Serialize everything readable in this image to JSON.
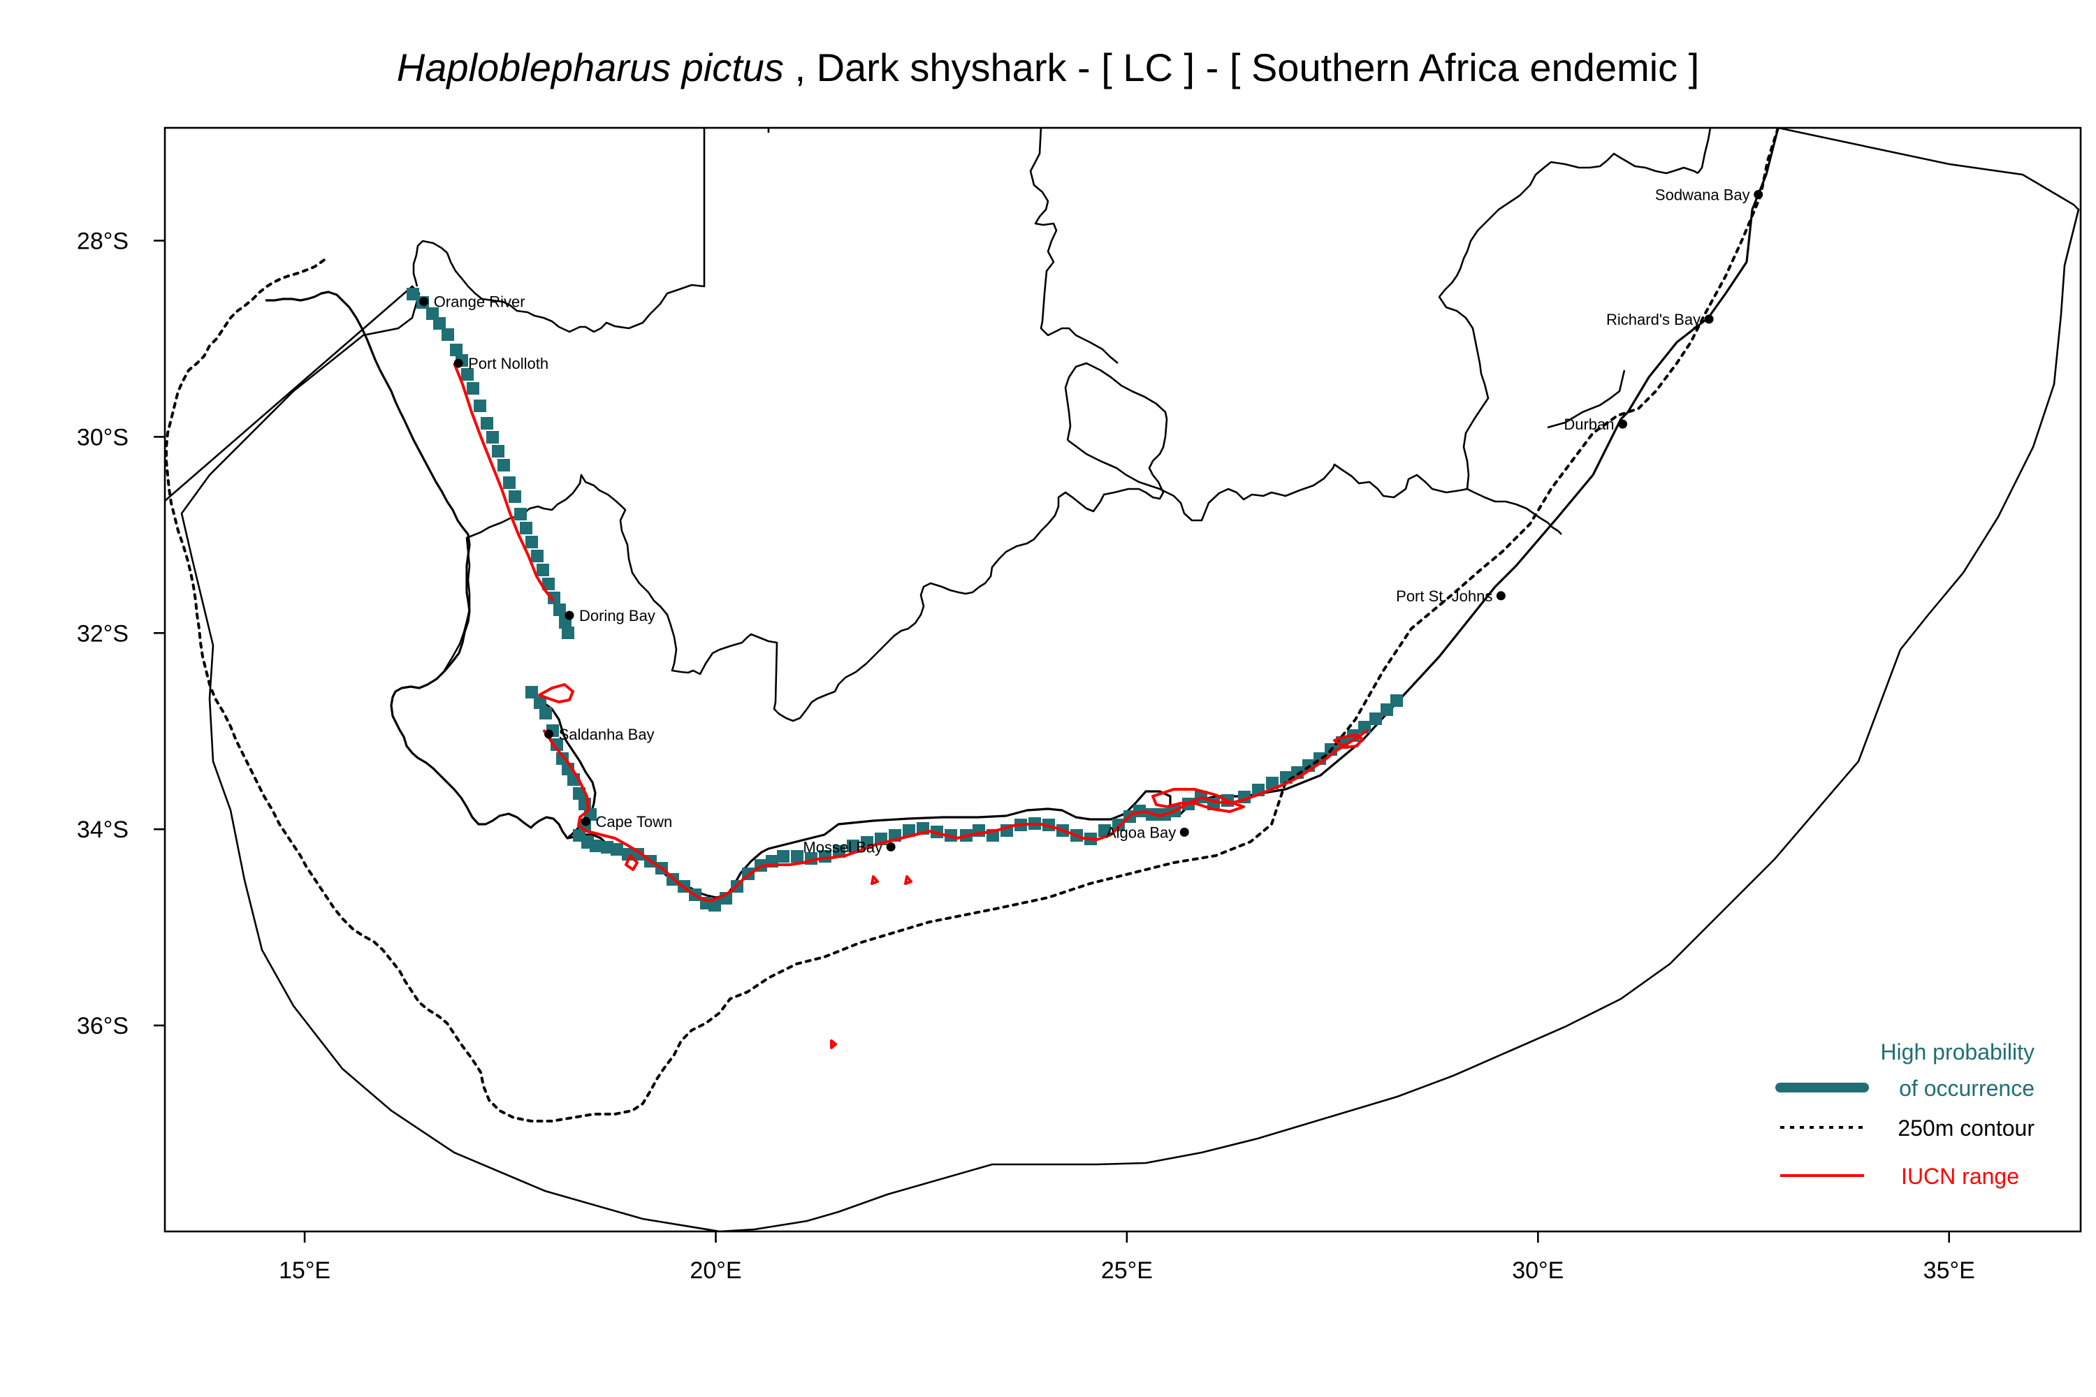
{
  "title": {
    "species": "Haploblepharus pictus",
    "rest": " , Dark shyshark  - [ LC ] - [ Southern Africa endemic ]"
  },
  "axes": {
    "x_ticks": [
      {
        "lon": 15,
        "label": "15°E"
      },
      {
        "lon": 20,
        "label": "20°E"
      },
      {
        "lon": 25,
        "label": "25°E"
      },
      {
        "lon": 30,
        "label": "30°E"
      },
      {
        "lon": 35,
        "label": "35°E"
      }
    ],
    "y_ticks": [
      {
        "lat": -28,
        "label": "28°S"
      },
      {
        "lat": -30,
        "label": "30°S"
      },
      {
        "lat": -32,
        "label": "32°S"
      },
      {
        "lat": -34,
        "label": "34°S"
      },
      {
        "lat": -36,
        "label": "36°S"
      }
    ],
    "xlim": [
      13.3,
      36.6
    ],
    "ylim": [
      -38.1,
      -26.85
    ]
  },
  "places": [
    {
      "name": "Orange River",
      "lon": 16.45,
      "lat": -28.62,
      "anchor": "start"
    },
    {
      "name": "Port Nolloth",
      "lon": 16.87,
      "lat": -29.25,
      "anchor": "start"
    },
    {
      "name": "Doring Bay",
      "lon": 18.22,
      "lat": -31.82,
      "anchor": "start"
    },
    {
      "name": "Saldanha Bay",
      "lon": 17.97,
      "lat": -33.03,
      "anchor": "start"
    },
    {
      "name": "Cape Town",
      "lon": 18.42,
      "lat": -33.92,
      "anchor": "start"
    },
    {
      "name": "Mossel Bay",
      "lon": 22.13,
      "lat": -34.18,
      "anchor": "end"
    },
    {
      "name": "Algoa Bay",
      "lon": 25.7,
      "lat": -34.03,
      "anchor": "end"
    },
    {
      "name": "Port St. Johns",
      "lon": 29.55,
      "lat": -31.62,
      "anchor": "end"
    },
    {
      "name": "Durban",
      "lon": 31.03,
      "lat": -29.87,
      "anchor": "end"
    },
    {
      "name": "Richard's Bay",
      "lon": 32.08,
      "lat": -28.8,
      "anchor": "end"
    },
    {
      "name": "Sodwana Bay",
      "lon": 32.68,
      "lat": -27.53,
      "anchor": "end"
    }
  ],
  "legend": {
    "occurrence_line1": "High probability",
    "occurrence_line2": "of occurrence",
    "contour": "250m contour",
    "iucn": "IUCN range",
    "colors": {
      "occurrence": "#1f6f74",
      "contour": "#000000",
      "iucn": "#ff0000"
    }
  }
}
